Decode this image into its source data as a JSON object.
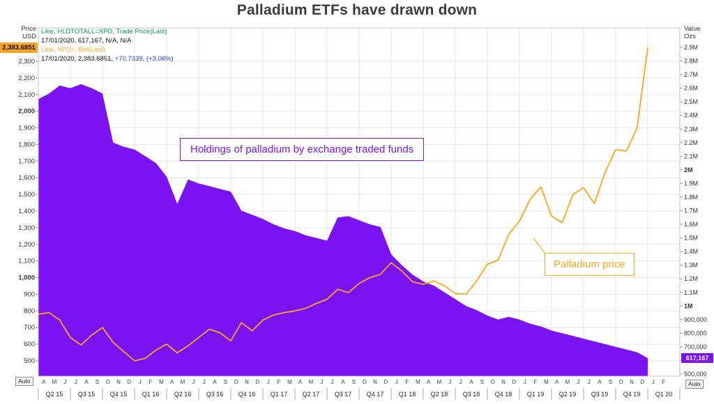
{
  "title": "Palladium ETFs have drawn down",
  "legend": {
    "line1": "Line, HLDTOTALL=XPD, Trade Price(Last)",
    "line2": "17/01/2020, 617,167, N/A, N/A",
    "line3": "Line, XPD=, Bid(Last)",
    "line4_value": "17/01/2020, 2,383.6851, ",
    "line4_change": "+70.7339, (+3.06%)"
  },
  "left_axis": {
    "title_line1": "Price",
    "title_line2": "USD",
    "badge": "2,383.6851",
    "ticks": [
      "2,300",
      "2,200",
      "2,100",
      "2,000",
      "1,900",
      "1,800",
      "1,700",
      "1,600",
      "1,500",
      "1,400",
      "1,300",
      "1,200",
      "1,100",
      "1,000",
      "900",
      "800",
      "700",
      "600",
      "500"
    ],
    "bold_ticks": [
      "2,000",
      "1,000"
    ]
  },
  "right_axis": {
    "title_line1": "Value",
    "title_line2": "Ozs",
    "badge": "617,167",
    "ticks": [
      "2.9M",
      "2.8M",
      "2.7M",
      "2.6M",
      "2.5M",
      "2.4M",
      "2.3M",
      "2.2M",
      "2.1M",
      "2M",
      "1.9M",
      "1.8M",
      "1.7M",
      "1.6M",
      "1.5M",
      "1.4M",
      "1.3M",
      "1.2M",
      "1.1M",
      "1M",
      "900,000",
      "800,000",
      "700,000",
      "600,000",
      "500,000"
    ],
    "bold_ticks": [
      "2M",
      "1M"
    ]
  },
  "x_axis": {
    "months": [
      "A",
      "M",
      "J",
      "J",
      "A",
      "S",
      "O",
      "N",
      "D",
      "J",
      "F",
      "M",
      "A",
      "M",
      "J",
      "J",
      "A",
      "S",
      "O",
      "N",
      "D",
      "J",
      "F",
      "M",
      "A",
      "M",
      "J",
      "J",
      "A",
      "S",
      "O",
      "N",
      "D",
      "J",
      "F",
      "M",
      "A",
      "M",
      "J",
      "J",
      "A",
      "S",
      "O",
      "N",
      "D",
      "J",
      "F",
      "M",
      "A",
      "M",
      "J",
      "J",
      "A",
      "S",
      "O",
      "N",
      "D",
      "J",
      "F"
    ],
    "quarters": [
      "Q2 15",
      "Q3 15",
      "Q4 15",
      "Q1 16",
      "Q2 16",
      "Q3 16",
      "Q4 16",
      "Q1 17",
      "Q2 17",
      "Q3 17",
      "Q4 17",
      "Q1 18",
      "Q2 18",
      "Q3 18",
      "Q4 18",
      "Q1 19",
      "Q2 19",
      "Q3 19",
      "Q4 19",
      "Q1 20"
    ]
  },
  "annotations": {
    "holdings": "Holdings of palladium by exchange traded funds",
    "price": "Palladium price"
  },
  "auto_left": "Auto",
  "auto_right": "Auto",
  "colors": {
    "purple": "#7B12F2",
    "orange": "#FBA41D",
    "green": "#0A9B4B",
    "blue": "#2B43DC",
    "title_gray": "#3C3C3C",
    "gridline": "#E6E6E6",
    "plot_border": "#C4C4C4"
  },
  "chart_data": {
    "type": "line",
    "title": "Palladium ETFs have drawn down",
    "xlabel": "",
    "ylabel_left": "Price USD",
    "ylabel_right": "Value Ozs",
    "left_axis_range": [
      500,
      2400
    ],
    "right_axis_range": [
      500000,
      2900000
    ],
    "grid": true,
    "legend_position": "top-left",
    "x": [
      "2015-04",
      "2015-05",
      "2015-06",
      "2015-07",
      "2015-08",
      "2015-09",
      "2015-10",
      "2015-11",
      "2015-12",
      "2016-01",
      "2016-02",
      "2016-03",
      "2016-04",
      "2016-05",
      "2016-06",
      "2016-07",
      "2016-08",
      "2016-09",
      "2016-10",
      "2016-11",
      "2016-12",
      "2017-01",
      "2017-02",
      "2017-03",
      "2017-04",
      "2017-05",
      "2017-06",
      "2017-07",
      "2017-08",
      "2017-09",
      "2017-10",
      "2017-11",
      "2017-12",
      "2018-01",
      "2018-02",
      "2018-03",
      "2018-04",
      "2018-05",
      "2018-06",
      "2018-07",
      "2018-08",
      "2018-09",
      "2018-10",
      "2018-11",
      "2018-12",
      "2019-01",
      "2019-02",
      "2019-03",
      "2019-04",
      "2019-05",
      "2019-06",
      "2019-07",
      "2019-08",
      "2019-09",
      "2019-10",
      "2019-11",
      "2019-12",
      "2020-01",
      "2020-02"
    ],
    "series": [
      {
        "name": "Palladium ETF holdings (HLDTOTALL=XPD, Trade Price(Last))",
        "kind": "area",
        "axis": "right",
        "unit": "ounces",
        "color": "#7B12F2",
        "last_point": {
          "date": "17/01/2020",
          "value": 617167
        },
        "values": [
          2520000,
          2560000,
          2620000,
          2600000,
          2630000,
          2600000,
          2560000,
          2200000,
          2170000,
          2150000,
          2100000,
          2050000,
          1950000,
          1750000,
          1930000,
          1900000,
          1880000,
          1860000,
          1840000,
          1700000,
          1670000,
          1640000,
          1600000,
          1570000,
          1550000,
          1520000,
          1500000,
          1480000,
          1650000,
          1660000,
          1630000,
          1600000,
          1580000,
          1380000,
          1300000,
          1230000,
          1180000,
          1150000,
          1100000,
          1050000,
          1000000,
          970000,
          930000,
          900000,
          920000,
          900000,
          870000,
          850000,
          820000,
          800000,
          780000,
          760000,
          740000,
          720000,
          700000,
          680000,
          660000,
          617167,
          null
        ]
      },
      {
        "name": "Palladium price (XPD=, Bid(Last))",
        "kind": "line",
        "axis": "left",
        "unit": "USD",
        "color": "#FBA41D",
        "last_point": {
          "date": "17/01/2020",
          "value": 2383.6851,
          "change": "+70.7339",
          "change_pct": "+3.06%"
        },
        "values": [
          780,
          790,
          745,
          640,
          595,
          655,
          700,
          610,
          555,
          500,
          515,
          565,
          600,
          548,
          590,
          640,
          690,
          668,
          620,
          730,
          680,
          745,
          775,
          790,
          800,
          815,
          845,
          870,
          930,
          910,
          965,
          1000,
          1020,
          1090,
          1040,
          975,
          960,
          980,
          950,
          905,
          900,
          980,
          1080,
          1105,
          1260,
          1340,
          1470,
          1545,
          1370,
          1330,
          1500,
          1540,
          1445,
          1630,
          1770,
          1760,
          1900,
          2383.6851,
          null
        ]
      }
    ]
  }
}
